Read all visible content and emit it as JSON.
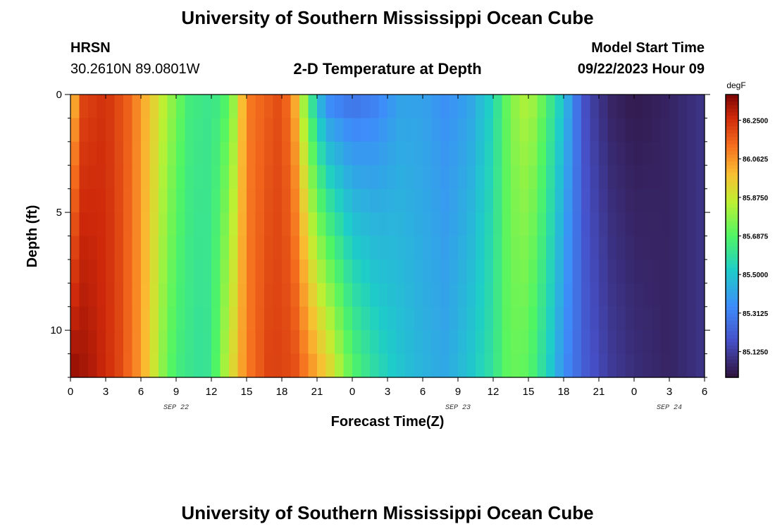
{
  "header": {
    "title": "University of Southern Mississippi Ocean Cube",
    "station": "HRSN",
    "coords": "30.2610N  89.0801W",
    "chart_title": "2-D Temperature at Depth",
    "model_label": "Model Start Time",
    "model_time": "09/22/2023 Hour 09",
    "footer_title": "University of Southern Mississippi Ocean Cube"
  },
  "chart_data": {
    "type": "heatmap",
    "title": "2-D Temperature at Depth",
    "xlabel": "Forecast Time(Z)",
    "ylabel": "Depth (ft)",
    "x_tick_labels": [
      "0",
      "3",
      "6",
      "9",
      "12",
      "15",
      "18",
      "21",
      "0",
      "3",
      "6",
      "9",
      "12",
      "15",
      "18",
      "21",
      "0",
      "3",
      "6"
    ],
    "x_range_hours": [
      0,
      54
    ],
    "date_labels": [
      "SEP 22",
      "SEP 23",
      "SEP 24"
    ],
    "y_tick_labels": [
      "0",
      "5",
      "10"
    ],
    "ylim_ft": [
      0,
      12
    ],
    "colorbar": {
      "unit": "degF",
      "range": [
        85.0,
        86.375
      ],
      "tick_labels": [
        "86.2500",
        "86.0625",
        "85.8750",
        "85.6875",
        "85.5000",
        "85.3125",
        "85.1250"
      ],
      "tick_values": [
        86.25,
        86.0625,
        85.875,
        85.6875,
        85.5,
        85.3125,
        85.125
      ]
    },
    "surface_temperature_by_hour": [
      [
        0,
        85.9
      ],
      [
        1,
        86.2
      ],
      [
        3,
        86.25
      ],
      [
        5,
        86.15
      ],
      [
        7,
        85.95
      ],
      [
        8,
        85.85
      ],
      [
        9,
        85.75
      ],
      [
        10,
        85.65
      ],
      [
        12,
        85.62
      ],
      [
        13,
        85.65
      ],
      [
        14,
        85.8
      ],
      [
        15,
        86.1
      ],
      [
        18,
        86.2
      ],
      [
        19,
        86.05
      ],
      [
        20,
        85.75
      ],
      [
        21,
        85.45
      ],
      [
        22,
        85.3
      ],
      [
        24,
        85.25
      ],
      [
        26,
        85.3
      ],
      [
        28,
        85.4
      ],
      [
        30,
        85.4
      ],
      [
        32,
        85.35
      ],
      [
        34,
        85.4
      ],
      [
        36,
        85.55
      ],
      [
        37,
        85.7
      ],
      [
        38,
        85.8
      ],
      [
        39,
        85.85
      ],
      [
        40,
        85.75
      ],
      [
        41,
        85.62
      ],
      [
        42,
        85.5
      ],
      [
        43,
        85.3
      ],
      [
        44,
        85.15
      ],
      [
        46,
        85.05
      ],
      [
        48,
        85.02
      ],
      [
        51,
        85.05
      ],
      [
        54,
        85.1
      ]
    ],
    "bottom_temperature_by_hour": [
      [
        0,
        86.35
      ],
      [
        2,
        86.3
      ],
      [
        4,
        86.22
      ],
      [
        6,
        86.05
      ],
      [
        7,
        85.9
      ],
      [
        8,
        85.75
      ],
      [
        9,
        85.65
      ],
      [
        11,
        85.6
      ],
      [
        12,
        85.62
      ],
      [
        13,
        85.8
      ],
      [
        15,
        86.1
      ],
      [
        17,
        86.22
      ],
      [
        19,
        86.2
      ],
      [
        22,
        85.95
      ],
      [
        24,
        85.7
      ],
      [
        26,
        85.58
      ],
      [
        28,
        85.5
      ],
      [
        30,
        85.45
      ],
      [
        32,
        85.42
      ],
      [
        34,
        85.5
      ],
      [
        36,
        85.6
      ],
      [
        37,
        85.7
      ],
      [
        38,
        85.72
      ],
      [
        39,
        85.7
      ],
      [
        40,
        85.6
      ],
      [
        41,
        85.5
      ],
      [
        42,
        85.35
      ],
      [
        44,
        85.2
      ],
      [
        46,
        85.12
      ],
      [
        48,
        85.08
      ],
      [
        51,
        85.05
      ],
      [
        54,
        85.1
      ]
    ]
  }
}
